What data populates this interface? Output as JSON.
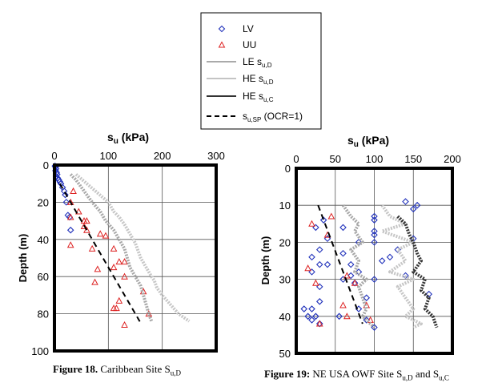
{
  "legend": {
    "items": [
      {
        "label": "LV",
        "symbol": "diamond",
        "color": "#2233bb"
      },
      {
        "label": "UU",
        "symbol": "triangle",
        "color": "#dd2222"
      },
      {
        "label": "LE s",
        "sub": "u,D",
        "symbol": "line",
        "color": "#aaaaaa"
      },
      {
        "label": "HE s",
        "sub": "u,D",
        "symbol": "line",
        "color": "#c4c4c4"
      },
      {
        "label": "HE s",
        "sub": "u,C",
        "symbol": "line",
        "color": "#333333"
      },
      {
        "label": "s",
        "sub": "u,SP",
        "suffix": " (OCR=1)",
        "symbol": "dashed",
        "color": "#000000"
      }
    ]
  },
  "captions": {
    "fig18_label": "Figure 18.",
    "fig18_text": " Caribbean Site S",
    "fig18_sub": "u,D",
    "fig19_label": "Figure 19:",
    "fig19_text": " NE USA OWF Site S",
    "fig19_sub": "u,D",
    "fig19_and": " and S",
    "fig19_sub2": "u,C"
  },
  "chart_data": [
    {
      "type": "scatter",
      "title": "su (kPa)",
      "title_main": "s",
      "title_sub": "u",
      "title_unit": " (kPa)",
      "xlabel": "su (kPa)",
      "ylabel": "Depth (m)",
      "xlim": [
        0,
        300
      ],
      "ylim": [
        0,
        100
      ],
      "xticks": [
        0,
        100,
        200,
        300
      ],
      "yticks": [
        0,
        20,
        40,
        60,
        80,
        100
      ],
      "grid": true,
      "series": [
        {
          "name": "LV",
          "points": [
            [
              1,
              0.5
            ],
            [
              2,
              1
            ],
            [
              3,
              2
            ],
            [
              2,
              3
            ],
            [
              4,
              4
            ],
            [
              5,
              5
            ],
            [
              3,
              6
            ],
            [
              6,
              7
            ],
            [
              8,
              8
            ],
            [
              10,
              9
            ],
            [
              12,
              10
            ],
            [
              15,
              12
            ],
            [
              18,
              14
            ],
            [
              20,
              16
            ],
            [
              22,
              20
            ],
            [
              25,
              27
            ],
            [
              28,
              28
            ],
            [
              30,
              35
            ]
          ]
        },
        {
          "name": "UU",
          "points": [
            [
              35,
              14
            ],
            [
              30,
              20
            ],
            [
              45,
              25
            ],
            [
              30,
              28
            ],
            [
              55,
              30
            ],
            [
              60,
              30
            ],
            [
              55,
              33
            ],
            [
              60,
              35
            ],
            [
              85,
              37
            ],
            [
              95,
              38
            ],
            [
              30,
              43
            ],
            [
              70,
              45
            ],
            [
              110,
              45
            ],
            [
              120,
              52
            ],
            [
              130,
              52
            ],
            [
              110,
              55
            ],
            [
              80,
              56
            ],
            [
              130,
              60
            ],
            [
              75,
              63
            ],
            [
              165,
              68
            ],
            [
              120,
              73
            ],
            [
              110,
              77
            ],
            [
              115,
              77
            ],
            [
              175,
              80
            ],
            [
              130,
              86
            ]
          ]
        },
        {
          "name": "LE su,D",
          "points": [
            [
              30,
              5
            ],
            [
              40,
              8
            ],
            [
              50,
              12
            ],
            [
              60,
              16
            ],
            [
              70,
              20
            ],
            [
              85,
              25
            ],
            [
              95,
              30
            ],
            [
              110,
              35
            ],
            [
              120,
              40
            ],
            [
              130,
              45
            ],
            [
              135,
              50
            ],
            [
              140,
              55
            ],
            [
              150,
              60
            ],
            [
              160,
              65
            ],
            [
              165,
              70
            ],
            [
              170,
              75
            ],
            [
              175,
              80
            ],
            [
              180,
              84
            ]
          ]
        },
        {
          "name": "HE su,D",
          "points": [
            [
              40,
              5
            ],
            [
              60,
              10
            ],
            [
              80,
              15
            ],
            [
              100,
              20
            ],
            [
              110,
              25
            ],
            [
              120,
              28
            ],
            [
              130,
              32
            ],
            [
              140,
              37
            ],
            [
              150,
              42
            ],
            [
              155,
              46
            ],
            [
              160,
              50
            ],
            [
              170,
              55
            ],
            [
              180,
              60
            ],
            [
              185,
              62
            ],
            [
              190,
              66
            ],
            [
              200,
              70
            ],
            [
              215,
              75
            ],
            [
              230,
              80
            ],
            [
              250,
              84
            ]
          ]
        },
        {
          "name": "su,SP (OCR=1)",
          "points": [
            [
              10,
              10
            ],
            [
              160,
              85
            ]
          ]
        }
      ]
    },
    {
      "type": "scatter",
      "title": "su (kPa)",
      "title_main": "s",
      "title_sub": "u",
      "title_unit": " (kPa)",
      "xlabel": "su (kPa)",
      "ylabel": "Depth (m)",
      "xlim": [
        0,
        200
      ],
      "ylim": [
        0,
        50
      ],
      "xticks": [
        0,
        50,
        100,
        150,
        200
      ],
      "yticks": [
        0,
        10,
        20,
        30,
        40,
        50
      ],
      "grid": true,
      "series": [
        {
          "name": "LV",
          "points": [
            [
              140,
              9
            ],
            [
              155,
              10
            ],
            [
              150,
              11
            ],
            [
              100,
              13
            ],
            [
              35,
              14
            ],
            [
              100,
              14
            ],
            [
              25,
              16
            ],
            [
              60,
              16
            ],
            [
              100,
              17
            ],
            [
              100,
              18
            ],
            [
              40,
              19
            ],
            [
              150,
              19
            ],
            [
              80,
              20
            ],
            [
              100,
              20
            ],
            [
              130,
              22
            ],
            [
              30,
              22
            ],
            [
              60,
              23
            ],
            [
              120,
              24
            ],
            [
              20,
              24
            ],
            [
              110,
              25
            ],
            [
              30,
              26
            ],
            [
              40,
              26
            ],
            [
              70,
              26
            ],
            [
              20,
              28
            ],
            [
              80,
              28
            ],
            [
              70,
              29
            ],
            [
              140,
              29
            ],
            [
              60,
              30
            ],
            [
              100,
              30
            ],
            [
              30,
              32
            ],
            [
              75,
              31
            ],
            [
              170,
              34
            ],
            [
              90,
              35
            ],
            [
              30,
              36
            ],
            [
              20,
              38
            ],
            [
              10,
              38
            ],
            [
              80,
              38
            ],
            [
              15,
              40
            ],
            [
              25,
              40
            ],
            [
              55,
              40
            ],
            [
              20,
              41
            ],
            [
              90,
              41
            ],
            [
              30,
              42
            ],
            [
              100,
              43
            ]
          ]
        },
        {
          "name": "UU",
          "points": [
            [
              45,
              13
            ],
            [
              20,
              15
            ],
            [
              40,
              18
            ],
            [
              15,
              27
            ],
            [
              65,
              29
            ],
            [
              25,
              31
            ],
            [
              75,
              31
            ],
            [
              60,
              37
            ],
            [
              90,
              37
            ],
            [
              65,
              40
            ],
            [
              95,
              41
            ],
            [
              30,
              42
            ]
          ]
        },
        {
          "name": "LE su,D",
          "points": [
            [
              60,
              10
            ],
            [
              70,
              13
            ],
            [
              80,
              15
            ],
            [
              75,
              17
            ],
            [
              85,
              20
            ],
            [
              70,
              22
            ],
            [
              80,
              25
            ],
            [
              75,
              28
            ],
            [
              90,
              30
            ],
            [
              80,
              32
            ],
            [
              85,
              35
            ],
            [
              90,
              38
            ],
            [
              85,
              40
            ],
            [
              95,
              42
            ],
            [
              100,
              43
            ]
          ]
        },
        {
          "name": "HE su,D",
          "points": [
            [
              110,
              10
            ],
            [
              120,
              13
            ],
            [
              140,
              15
            ],
            [
              110,
              17
            ],
            [
              150,
              20
            ],
            [
              130,
              22
            ],
            [
              140,
              25
            ],
            [
              120,
              28
            ],
            [
              150,
              30
            ],
            [
              130,
              32
            ],
            [
              140,
              35
            ],
            [
              150,
              38
            ],
            [
              140,
              40
            ],
            [
              160,
              42
            ],
            [
              150,
              43
            ]
          ]
        },
        {
          "name": "HE su,C",
          "points": [
            [
              130,
              13
            ],
            [
              140,
              15
            ],
            [
              145,
              18
            ],
            [
              150,
              20
            ],
            [
              155,
              23
            ],
            [
              160,
              25
            ],
            [
              150,
              28
            ],
            [
              165,
              30
            ],
            [
              160,
              33
            ],
            [
              170,
              35
            ],
            [
              165,
              38
            ],
            [
              175,
              40
            ],
            [
              180,
              43
            ]
          ]
        },
        {
          "name": "su,SP (OCR=1)",
          "points": [
            [
              28,
              10
            ],
            [
              85,
              42
            ]
          ]
        }
      ]
    }
  ]
}
